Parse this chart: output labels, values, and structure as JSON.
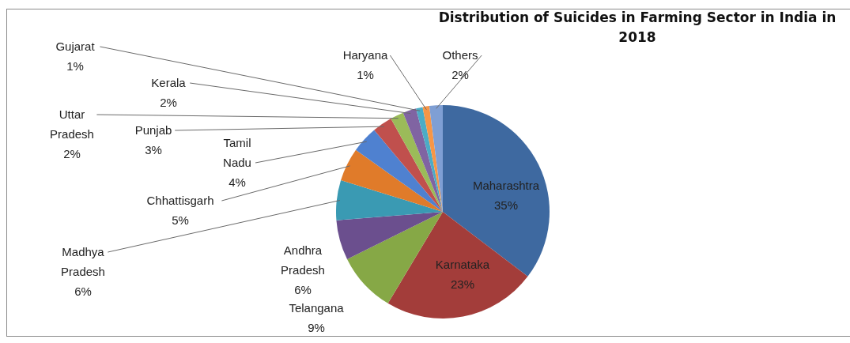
{
  "chart_data": {
    "type": "pie",
    "title": "Distribution of Suicides in Farming Sector in India in 2018",
    "categories": [
      "Maharashtra",
      "Karnataka",
      "Telangana",
      "Andhra Pradesh",
      "Madhya Pradesh",
      "Chhattisgarh",
      "Tamil Nadu",
      "Punjab",
      "Uttar Pradesh",
      "Kerala",
      "Gujarat",
      "Haryana",
      "Others"
    ],
    "values": [
      35,
      23,
      9,
      6,
      6,
      5,
      4,
      3,
      2,
      2,
      1,
      1,
      2
    ],
    "value_labels": [
      "35%",
      "23%",
      "9%",
      "6%",
      "6%",
      "5%",
      "4%",
      "3%",
      "2%",
      "2%",
      "1%",
      "1%",
      "2%"
    ],
    "colors": [
      "#3e69a0",
      "#a33d3a",
      "#86a846",
      "#6b4f8e",
      "#3a9ab3",
      "#e07b2a",
      "#4f81d0",
      "#c0504d",
      "#9bbb59",
      "#8064a2",
      "#4bacc6",
      "#f79646",
      "#7f9fd4"
    ]
  }
}
